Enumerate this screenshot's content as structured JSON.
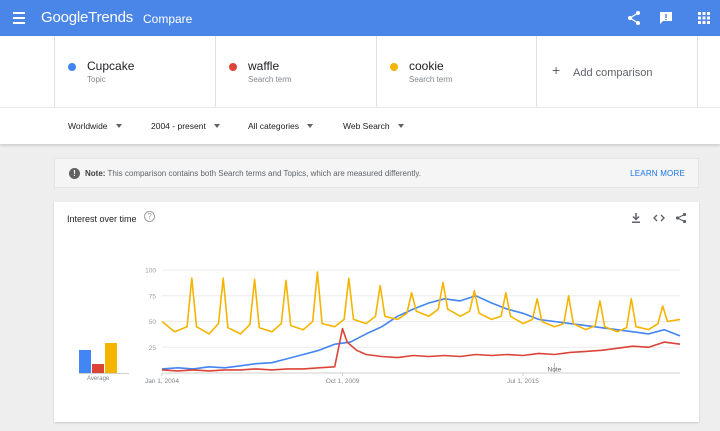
{
  "header": {
    "logo_google": "Google",
    "logo_trends": "Trends",
    "title": "Compare"
  },
  "terms": [
    {
      "name": "Cupcake",
      "type": "Topic",
      "color": "#4285f4"
    },
    {
      "name": "waffle",
      "type": "Search term",
      "color": "#db4437"
    },
    {
      "name": "cookie",
      "type": "Search term",
      "color": "#f4b400"
    }
  ],
  "add_comparison": "Add comparison",
  "filters": {
    "region": "Worldwide",
    "time": "2004 - present",
    "category": "All categories",
    "search_type": "Web Search"
  },
  "note": {
    "label": "Note:",
    "text": "This comparison contains both Search terms and Topics, which are measured differently.",
    "learn_more": "LEARN MORE"
  },
  "card": {
    "title": "Interest over time",
    "average_label": "Average"
  },
  "chart_data": {
    "type": "line",
    "yticks": [
      25,
      50,
      75,
      100
    ],
    "ylim": [
      0,
      100
    ],
    "x_tick_labels": [
      "Jan 1, 2004",
      "Oct 1, 2009",
      "Jul 1, 2015"
    ],
    "x_tick_positions": [
      2004.0,
      2009.75,
      2015.5
    ],
    "xlim": [
      2004.0,
      2020.5
    ],
    "annotation": "Note",
    "annotation_x": 2016.5,
    "averages": [
      {
        "name": "Cupcake",
        "value": 38,
        "color": "#4285f4"
      },
      {
        "name": "waffle",
        "value": 15,
        "color": "#db4437"
      },
      {
        "name": "cookie",
        "value": 50,
        "color": "#f4b400"
      }
    ],
    "series": [
      {
        "name": "Cupcake",
        "color": "#4285f4",
        "x": [
          2004.0,
          2004.5,
          2005.0,
          2005.5,
          2006.0,
          2006.5,
          2007.0,
          2007.5,
          2008.0,
          2008.5,
          2009.0,
          2009.5,
          2010.0,
          2010.5,
          2011.0,
          2011.5,
          2012.0,
          2012.5,
          2013.0,
          2013.5,
          2014.0,
          2014.5,
          2015.0,
          2015.5,
          2016.0,
          2016.5,
          2017.0,
          2017.5,
          2018.0,
          2018.5,
          2019.0,
          2019.5,
          2020.0,
          2020.5
        ],
        "y": [
          4,
          5,
          4,
          6,
          5,
          7,
          9,
          10,
          14,
          18,
          22,
          28,
          30,
          38,
          45,
          55,
          62,
          68,
          72,
          70,
          75,
          68,
          62,
          58,
          52,
          50,
          48,
          46,
          44,
          42,
          40,
          38,
          42,
          36
        ]
      },
      {
        "name": "waffle",
        "color": "#db4437",
        "x": [
          2004.0,
          2004.5,
          2005.0,
          2005.5,
          2006.0,
          2006.5,
          2007.0,
          2007.5,
          2008.0,
          2008.5,
          2009.0,
          2009.5,
          2009.75,
          2009.9,
          2010.2,
          2010.5,
          2011.0,
          2011.5,
          2012.0,
          2012.5,
          2013.0,
          2013.5,
          2014.0,
          2014.5,
          2015.0,
          2015.5,
          2016.0,
          2016.5,
          2017.0,
          2017.5,
          2018.0,
          2018.5,
          2019.0,
          2019.5,
          2020.0,
          2020.5
        ],
        "y": [
          3,
          2,
          3,
          2,
          3,
          3,
          4,
          3,
          4,
          4,
          5,
          6,
          43,
          30,
          22,
          18,
          16,
          15,
          17,
          16,
          17,
          16,
          18,
          17,
          18,
          17,
          19,
          18,
          20,
          21,
          22,
          24,
          26,
          25,
          30,
          28
        ]
      },
      {
        "name": "cookie",
        "color": "#f4b400",
        "x": [
          2004.0,
          2004.4,
          2004.8,
          2004.95,
          2005.1,
          2005.5,
          2005.8,
          2005.95,
          2006.1,
          2006.5,
          2006.8,
          2006.95,
          2007.1,
          2007.5,
          2007.8,
          2007.95,
          2008.1,
          2008.5,
          2008.8,
          2008.95,
          2009.1,
          2009.5,
          2009.8,
          2009.95,
          2010.1,
          2010.5,
          2010.8,
          2010.95,
          2011.1,
          2011.5,
          2011.8,
          2011.95,
          2012.1,
          2012.5,
          2012.8,
          2012.95,
          2013.1,
          2013.5,
          2013.8,
          2013.95,
          2014.1,
          2014.5,
          2014.8,
          2014.95,
          2015.1,
          2015.5,
          2015.8,
          2015.95,
          2016.1,
          2016.5,
          2016.8,
          2016.95,
          2017.1,
          2017.5,
          2017.8,
          2017.95,
          2018.1,
          2018.5,
          2018.8,
          2018.95,
          2019.1,
          2019.5,
          2019.8,
          2019.95,
          2020.1,
          2020.5
        ],
        "y": [
          50,
          40,
          45,
          92,
          45,
          38,
          48,
          92,
          44,
          38,
          47,
          91,
          44,
          40,
          48,
          90,
          46,
          42,
          50,
          98,
          48,
          45,
          52,
          92,
          52,
          48,
          55,
          85,
          55,
          52,
          58,
          78,
          60,
          55,
          62,
          88,
          62,
          55,
          60,
          80,
          58,
          52,
          55,
          78,
          55,
          48,
          52,
          72,
          50,
          45,
          48,
          75,
          48,
          42,
          46,
          70,
          45,
          40,
          44,
          72,
          45,
          42,
          48,
          65,
          50,
          52
        ]
      }
    ]
  }
}
